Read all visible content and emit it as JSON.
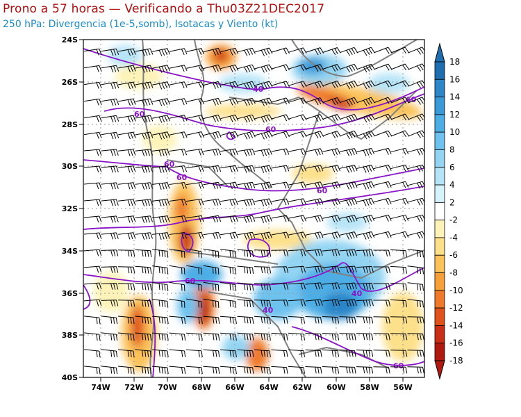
{
  "title": "Prono a 57 horas — Verificando a Thu03Z21DEC2017",
  "subtitle": "250 hPa: Divergencia (1e-5,somb), Isotacas y Viento (kt)",
  "lat_labels": [
    "24S",
    "26S",
    "28S",
    "30S",
    "32S",
    "34S",
    "36S",
    "38S",
    "40S"
  ],
  "lon_labels": [
    "74W",
    "72W",
    "70W",
    "68W",
    "66W",
    "64W",
    "62W",
    "60W",
    "58W",
    "56W"
  ],
  "colorbar": {
    "labels": [
      "18",
      "16",
      "14",
      "12",
      "10",
      "8",
      "6",
      "4",
      "2",
      "-2",
      "-4",
      "-6",
      "-8",
      "-10",
      "-12",
      "-14",
      "-16",
      "-18"
    ],
    "colors": [
      "#1f6fb0",
      "#2c86c8",
      "#3a9ad8",
      "#4daee6",
      "#6ec2ee",
      "#93d4f2",
      "#b6e4f7",
      "#d6f2fb",
      "#ffffff",
      "#fdf3b8",
      "#fde08a",
      "#fbc25a",
      "#f7a03a",
      "#ef7a2a",
      "#e0521c",
      "#c92e16",
      "#b0190f"
    ]
  },
  "isotach_labels": [
    "40",
    "60",
    "60",
    "60",
    "60",
    "60",
    "60",
    "40",
    "60",
    "40",
    "60"
  ],
  "colors": {
    "title": "#b01010",
    "subtitle": "#1a8cc8",
    "isotach": "#8a14c8",
    "border": "#808080"
  }
}
